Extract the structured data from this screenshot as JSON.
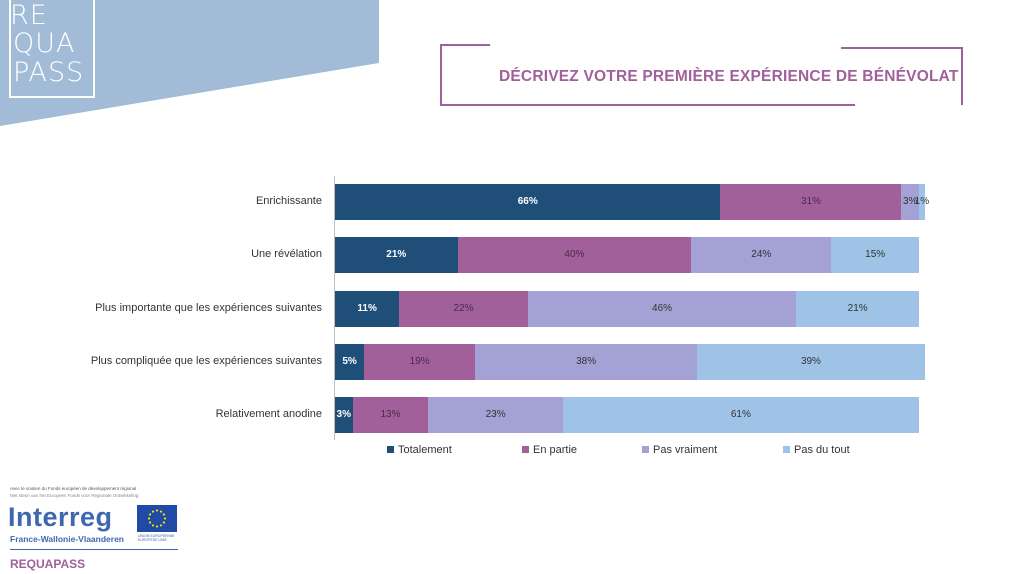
{
  "brand": {
    "logo_lines": [
      "RE",
      "QUA",
      "PASS"
    ],
    "corner_color": "#a2bcd7"
  },
  "title": "DÉCRIVEZ VOTRE PREMIÈRE EXPÉRIENCE DE BÉNÉVOLAT",
  "chart_data": {
    "type": "bar",
    "orientation": "horizontal-stacked-100",
    "categories": [
      "Enrichissante",
      "Une révélation",
      "Plus importante que les expériences suivantes",
      "Plus compliquée que les expériences suivantes",
      "Relativement anodine"
    ],
    "series": [
      {
        "name": "Totalement",
        "color": "#1f4e79",
        "label_color": "#ffffff",
        "values": [
          66,
          21,
          11,
          5,
          3
        ]
      },
      {
        "name": "En partie",
        "color": "#a2609a",
        "label_color": "#4a2a47",
        "values": [
          31,
          40,
          22,
          19,
          13
        ]
      },
      {
        "name": "Pas vraiment",
        "color": "#a4a2d4",
        "label_color": "#333333",
        "values": [
          3,
          24,
          46,
          38,
          23
        ]
      },
      {
        "name": "Pas du tout",
        "color": "#9fc3e7",
        "label_color": "#333333",
        "values": [
          1,
          15,
          21,
          39,
          61
        ]
      }
    ],
    "value_suffix": "%",
    "xlim": [
      0,
      100
    ],
    "legend_position": "bottom",
    "grid": false
  },
  "footer": {
    "support_line1": "Avec le soutien du  Fonds européen  de développement régional",
    "support_line2": "Met steun van het Europees Fonds voor Regionale Ontwikkeling",
    "program_name": "Interreg",
    "program_region": "France-Wallonie-Vlaanderen",
    "eu_line1": "UNION EUROPÉENNE",
    "eu_line2": "EUROPESE UNIE",
    "project": "REQUAPASS",
    "program_color": "#3f67b0",
    "project_color": "#a0609a"
  }
}
